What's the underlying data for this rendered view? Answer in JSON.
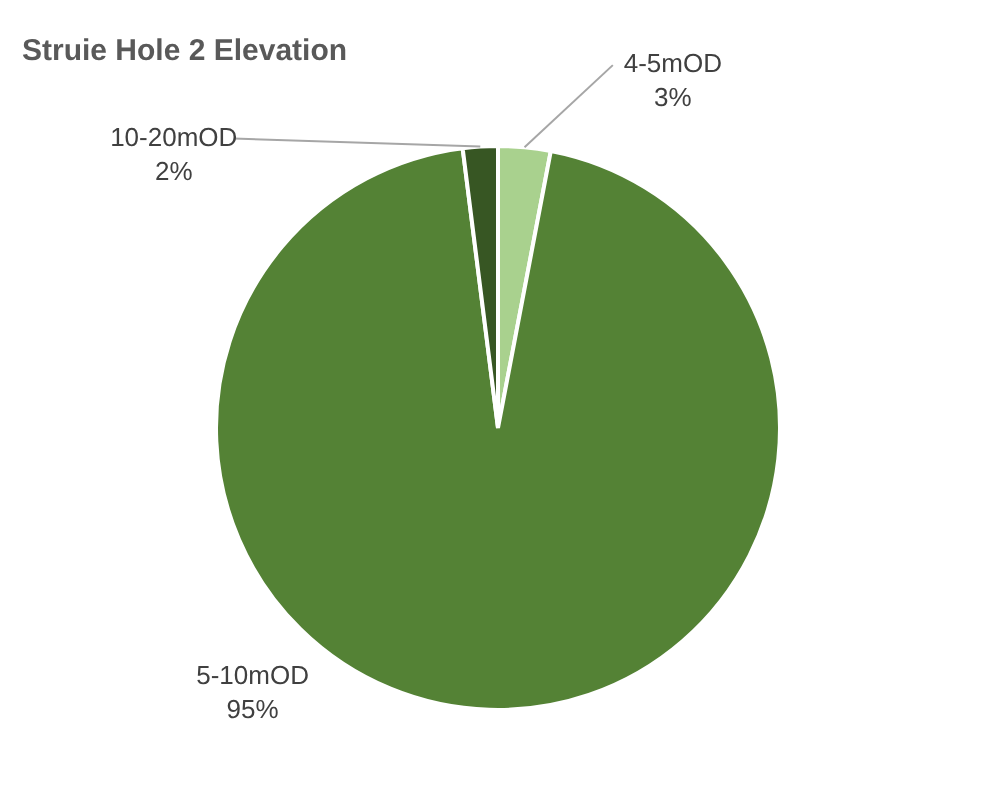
{
  "chart_data": {
    "type": "pie",
    "title": "Struie Hole 2 Elevation",
    "categories": [
      "4-5mOD",
      "5-10mOD",
      "10-20mOD"
    ],
    "values": [
      3,
      95,
      2
    ],
    "colors": [
      "#a9d18e",
      "#548235",
      "#375623"
    ],
    "value_labels": [
      "3%",
      "95%",
      "2%"
    ],
    "legend": false
  }
}
